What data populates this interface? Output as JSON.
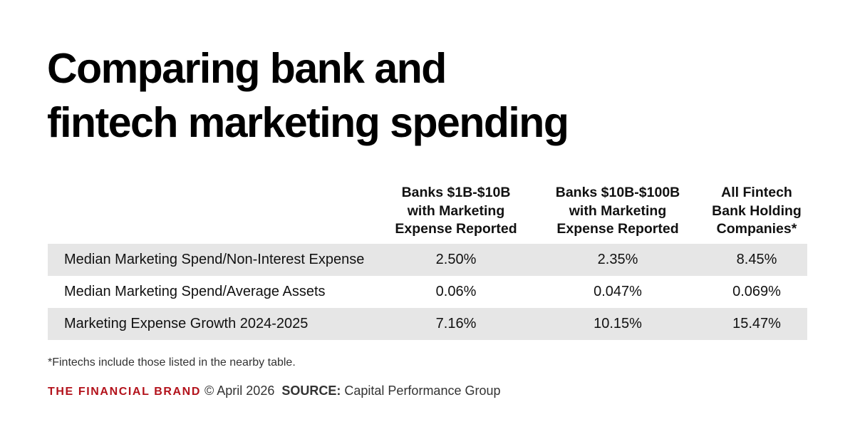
{
  "title": {
    "line1": "Comparing bank and",
    "line2": "fintech marketing spending"
  },
  "chart_data": {
    "type": "table",
    "columns": [
      {
        "lines": [
          "Banks $1B-$10B",
          "with Marketing",
          "Expense Reported"
        ]
      },
      {
        "lines": [
          "Banks $10B-$100B",
          "with Marketing",
          "Expense Reported"
        ]
      },
      {
        "lines": [
          "All Fintech",
          "Bank Holding",
          "Companies*"
        ]
      }
    ],
    "rows": [
      {
        "label": "Median Marketing Spend/Non-Interest Expense",
        "values": [
          "2.50%",
          "2.35%",
          "8.45%"
        ]
      },
      {
        "label": "Median Marketing Spend/Average Assets",
        "values": [
          "0.06%",
          "0.047%",
          "0.069%"
        ]
      },
      {
        "label": "Marketing Expense Growth 2024-2025",
        "values": [
          "7.16%",
          "10.15%",
          "15.47%"
        ]
      }
    ]
  },
  "footnote": "*Fintechs include those listed in the nearby table.",
  "footer": {
    "brand": "THE FINANCIAL BRAND",
    "copyright": "© April 2026",
    "source_label": "SOURCE:",
    "source_value": "Capital Performance Group"
  },
  "colors": {
    "brand_red": "#b3121b",
    "row_shade": "#e6e6e6",
    "text": "#111111"
  }
}
